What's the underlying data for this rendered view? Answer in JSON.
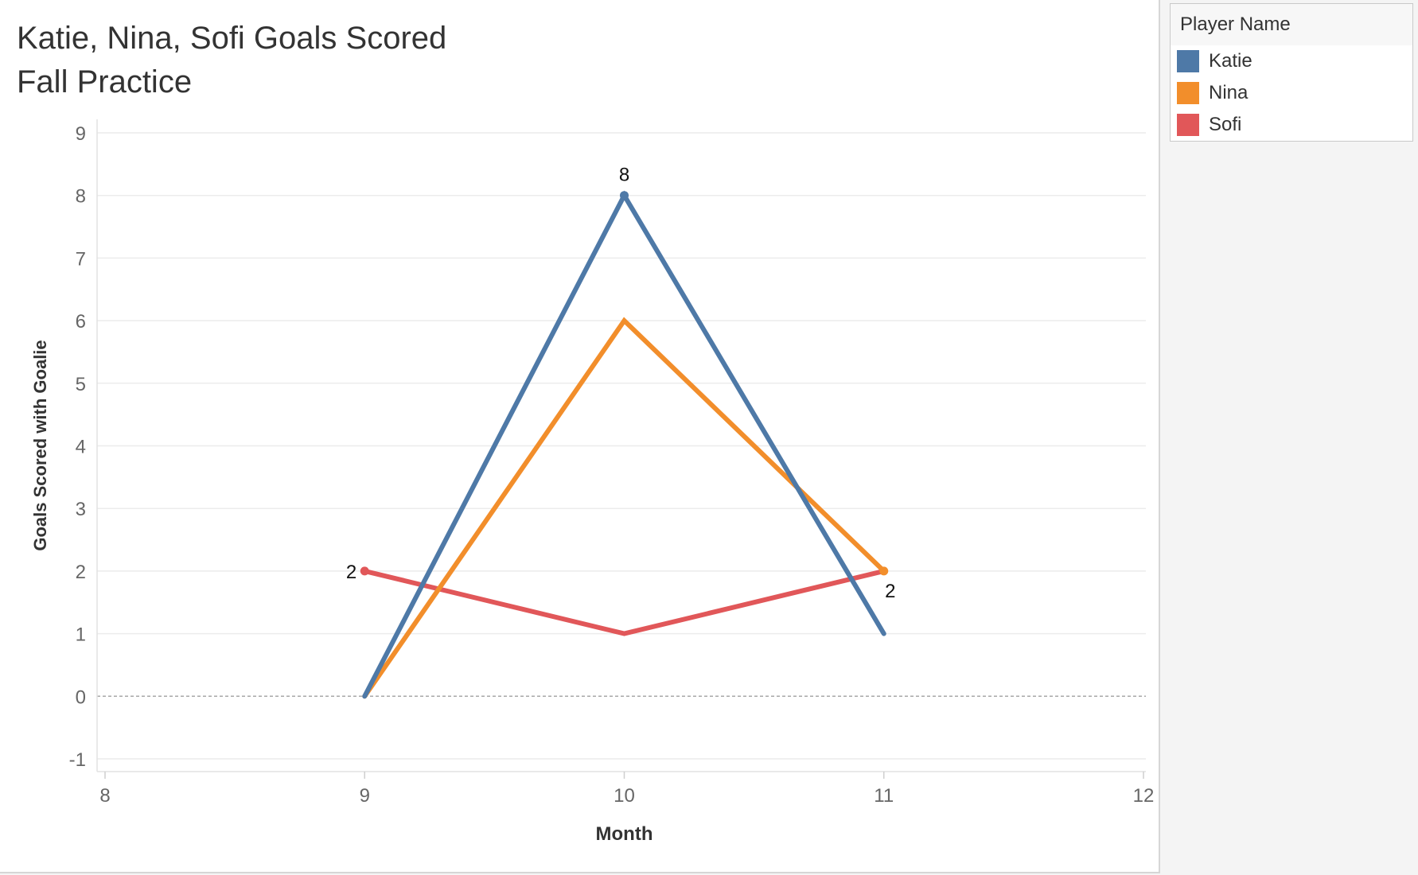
{
  "title_lines": [
    "Katie, Nina, Sofi Goals Scored",
    "Fall Practice"
  ],
  "legend": {
    "title": "Player Name",
    "items": [
      {
        "label": "Katie",
        "color": "#4e79a7"
      },
      {
        "label": "Nina",
        "color": "#f28e2b"
      },
      {
        "label": "Sofi",
        "color": "#e15759"
      }
    ]
  },
  "chart_data": {
    "type": "line",
    "title": "Katie, Nina, Sofi Goals Scored\nFall Practice",
    "xlabel": "Month",
    "ylabel": "Goals Scored with Goalie",
    "x": [
      9,
      10,
      11
    ],
    "xlim": [
      8,
      12
    ],
    "ylim": [
      -1,
      9
    ],
    "x_ticks": [
      8,
      9,
      10,
      11,
      12
    ],
    "y_ticks": [
      -1,
      0,
      1,
      2,
      3,
      4,
      5,
      6,
      7,
      8,
      9
    ],
    "grid": true,
    "legend_position": "right",
    "series": [
      {
        "name": "Katie",
        "color": "#4e79a7",
        "values": [
          0,
          8,
          1
        ]
      },
      {
        "name": "Nina",
        "color": "#f28e2b",
        "values": [
          0,
          6,
          2
        ]
      },
      {
        "name": "Sofi",
        "color": "#e15759",
        "values": [
          2,
          1,
          2
        ]
      }
    ],
    "annotations": [
      {
        "series": "Katie",
        "x": 10,
        "y": 8,
        "text": "8"
      },
      {
        "series": "Sofi",
        "x": 9,
        "y": 2,
        "text": "2"
      },
      {
        "series": "Nina",
        "x": 11,
        "y": 2,
        "text": "2"
      }
    ]
  }
}
